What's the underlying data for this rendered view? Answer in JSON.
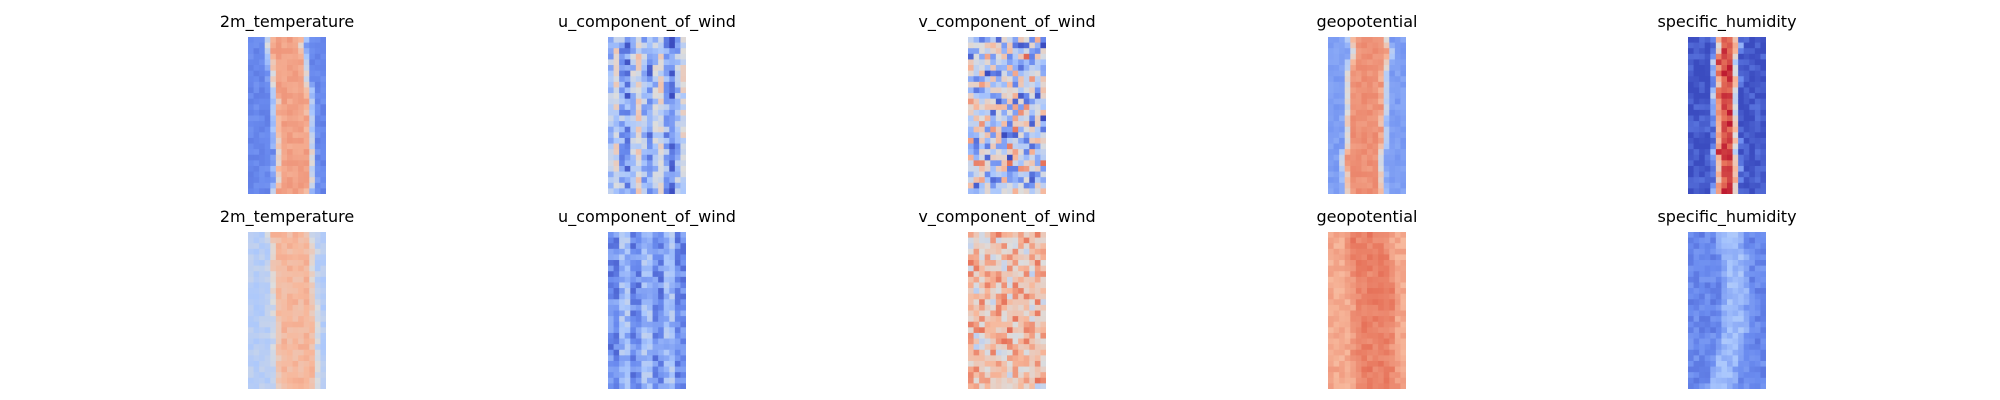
{
  "figure": {
    "background": "#ffffff"
  },
  "colormap": {
    "name": "coolwarm",
    "stops": [
      "#3b4cc0",
      "#6a8bef",
      "#aac7fd",
      "#dddddd",
      "#f7b89c",
      "#e7745b",
      "#b40426"
    ]
  },
  "chart_data": [
    {
      "type": "heatmap",
      "row": 1,
      "title": "2m_temperature",
      "pattern": "center_band",
      "base": 0.72,
      "edge": 0.16,
      "width": 0.34,
      "noise": 0.06,
      "seed": 11
    },
    {
      "type": "heatmap",
      "row": 1,
      "title": "u_component_of_wind",
      "pattern": "streaks",
      "base": 0.35,
      "edge": 0.3,
      "width": 0.3,
      "noise": 0.32,
      "seed": 12
    },
    {
      "type": "heatmap",
      "row": 1,
      "title": "v_component_of_wind",
      "pattern": "noisy",
      "base": 0.42,
      "edge": 0.4,
      "width": 0.5,
      "noise": 0.3,
      "seed": 13
    },
    {
      "type": "heatmap",
      "row": 1,
      "title": "geopotential",
      "pattern": "center_band",
      "base": 0.76,
      "edge": 0.22,
      "width": 0.36,
      "noise": 0.06,
      "seed": 14
    },
    {
      "type": "heatmap",
      "row": 1,
      "title": "specific_humidity",
      "pattern": "narrow_core",
      "base": 0.9,
      "edge": 0.03,
      "width": 0.14,
      "noise": 0.14,
      "seed": 15
    },
    {
      "type": "heatmap",
      "row": 2,
      "title": "2m_temperature",
      "pattern": "center_band",
      "base": 0.66,
      "edge": 0.38,
      "width": 0.4,
      "noise": 0.08,
      "seed": 21
    },
    {
      "type": "heatmap",
      "row": 2,
      "title": "u_component_of_wind",
      "pattern": "streaks",
      "base": 0.24,
      "edge": 0.24,
      "width": 0.3,
      "noise": 0.2,
      "seed": 22
    },
    {
      "type": "heatmap",
      "row": 2,
      "title": "v_component_of_wind",
      "pattern": "noisy",
      "base": 0.62,
      "edge": 0.6,
      "width": 0.5,
      "noise": 0.16,
      "seed": 23
    },
    {
      "type": "heatmap",
      "row": 2,
      "title": "geopotential",
      "pattern": "center_band",
      "base": 0.8,
      "edge": 0.7,
      "width": 0.4,
      "noise": 0.08,
      "seed": 24
    },
    {
      "type": "heatmap",
      "row": 2,
      "title": "specific_humidity",
      "pattern": "narrow_core",
      "base": 0.3,
      "edge": 0.16,
      "width": 0.2,
      "noise": 0.1,
      "seed": 25
    }
  ]
}
